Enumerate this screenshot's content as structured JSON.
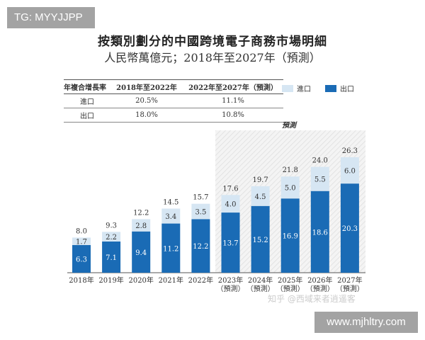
{
  "watermarks": {
    "tg": "TG: MYYJJPP",
    "url": "www.mjhltry.com",
    "zhihu": "知乎 @西域来者逍遥客"
  },
  "header": {
    "title": "按類別劃分的中國跨境電子商務市場明細",
    "subtitle": "人民幣萬億元；2018年至2027年（預測）"
  },
  "cagr_table": {
    "headers": [
      "年複合增長率",
      "2018年至2022年",
      "2022年至2027年（預測）"
    ],
    "rows": [
      [
        "進口",
        "20.5%",
        "11.1%"
      ],
      [
        "出口",
        "18.0%",
        "10.8%"
      ]
    ]
  },
  "colors": {
    "import": "#d6e6f3",
    "export": "#1a6bb5"
  },
  "chart_data": {
    "type": "bar",
    "stacked": true,
    "forecast_label": "預測",
    "categories": [
      "2018年",
      "2019年",
      "2020年",
      "2021年",
      "2022年",
      "2023年\n（預測）",
      "2024年\n（預測）",
      "2025年\n（預測）",
      "2026年\n（預測）",
      "2027年\n（預測）"
    ],
    "series": [
      {
        "name": "出口",
        "values": [
          6.3,
          7.1,
          9.4,
          11.2,
          12.2,
          13.7,
          15.2,
          16.9,
          18.6,
          20.3
        ]
      },
      {
        "name": "進口",
        "values": [
          1.7,
          2.2,
          2.8,
          3.4,
          3.5,
          4.0,
          4.5,
          5.0,
          5.5,
          6.0
        ]
      }
    ],
    "totals": [
      "8.0",
      "9.3",
      "12.2",
      "14.5",
      "15.7",
      "17.6",
      "19.7",
      "21.8",
      "24.0",
      "26.3"
    ],
    "legend": "top-right",
    "grid": false
  }
}
